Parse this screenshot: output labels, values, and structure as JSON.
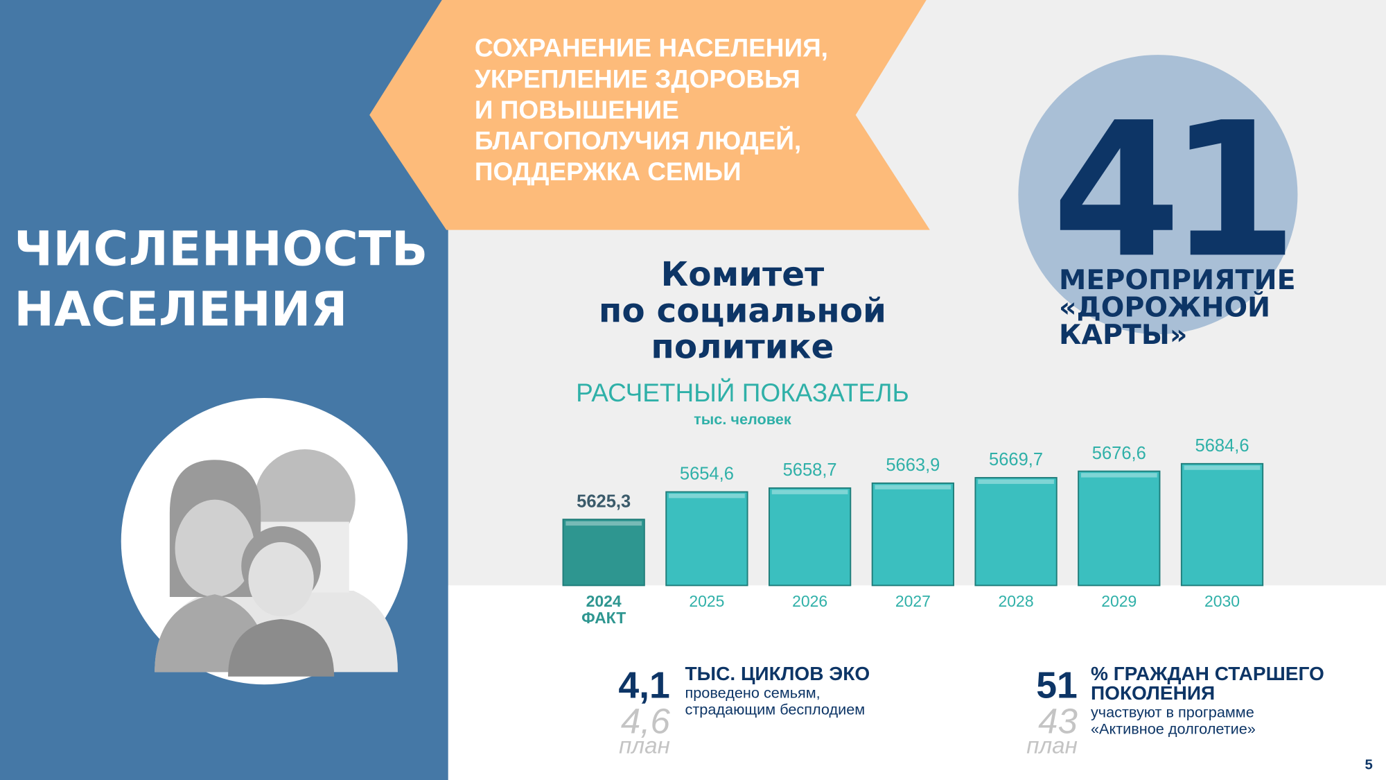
{
  "section_title": [
    "ЧИСЛЕННОСТЬ",
    "НАСЕЛЕНИЯ"
  ],
  "banner": [
    "СОХРАНЕНИЕ НАСЕЛЕНИЯ,",
    "УКРЕПЛЕНИЕ ЗДОРОВЬЯ",
    "И ПОВЫШЕНИЕ",
    "БЛАГОПОЛУЧИЯ ЛЮДЕЙ,",
    "ПОДДЕРЖКА СЕМЬИ"
  ],
  "committee": [
    "Комитет",
    "по социальной",
    "политике"
  ],
  "roadmap": {
    "number": "41",
    "label": [
      "МЕРОПРИЯТИЕ",
      "«ДОРОЖНОЙ",
      "КАРТЫ»"
    ]
  },
  "chart_data": {
    "type": "bar",
    "title": "РАСЧЕТНЫЙ ПОКАЗАТЕЛЬ",
    "subtitle": "тыс. человек",
    "categories": [
      "2024",
      "2025",
      "2026",
      "2027",
      "2028",
      "2029",
      "2030"
    ],
    "category_note": "ФАКТ",
    "values": [
      5625.3,
      5654.6,
      5658.7,
      5663.9,
      5669.7,
      5676.6,
      5684.6
    ],
    "value_labels": [
      "5625,3",
      "5654,6",
      "5658,7",
      "5663,9",
      "5669,7",
      "5676,6",
      "5684,6"
    ],
    "colors": [
      "#2e9690",
      "#3bbfbf",
      "#3bbfbf",
      "#3bbfbf",
      "#3bbfbf",
      "#3bbfbf",
      "#3bbfbf"
    ],
    "ylim": [
      5555,
      5700
    ]
  },
  "stats": [
    {
      "value": "4,1",
      "plan": "4,6",
      "plan_label": "план",
      "title": "ТЫС. ЦИКЛОВ ЭКО",
      "text": [
        "проведено семьям,",
        "страдающим бесплодием"
      ]
    },
    {
      "value": "51",
      "plan": "43",
      "plan_label": "план",
      "title": [
        "% ГРАЖДАН СТАРШЕГО",
        "ПОКОЛЕНИЯ"
      ],
      "text": [
        "участвуют в программе",
        "«Активное долголетие»"
      ]
    }
  ],
  "page_number": "5"
}
